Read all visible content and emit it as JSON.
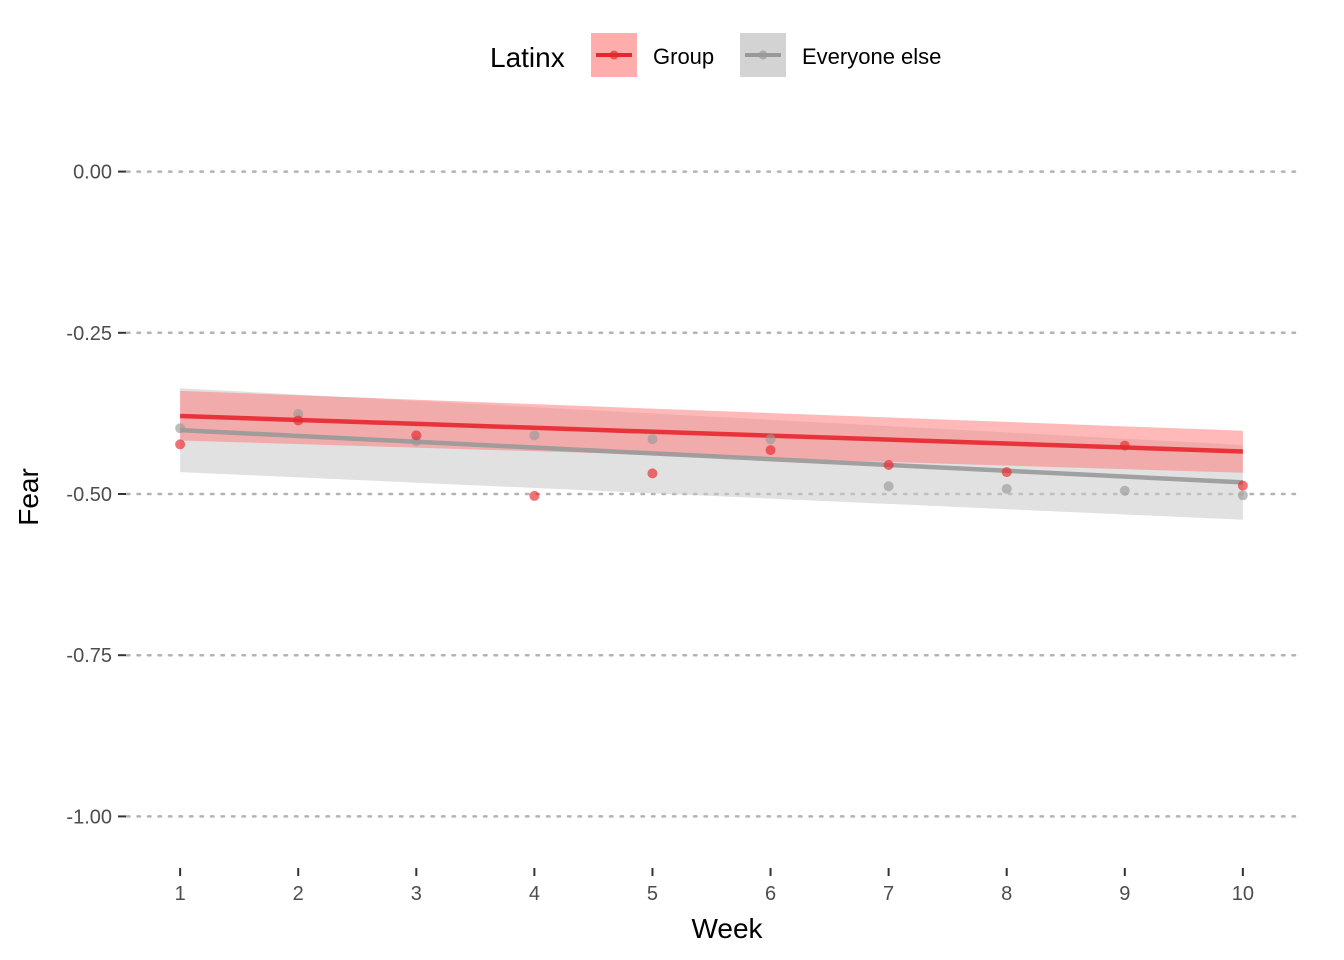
{
  "chart_data": {
    "type": "scatter",
    "title": "",
    "xlabel": "Week",
    "ylabel": "Fear",
    "xlim": [
      0.55,
      10.45
    ],
    "ylim": [
      -1.08,
      0.08
    ],
    "x_ticks": [
      1,
      2,
      3,
      4,
      5,
      6,
      7,
      8,
      9,
      10
    ],
    "y_ticks": [
      0.0,
      -0.25,
      -0.5,
      -0.75,
      -1.0
    ],
    "y_tick_labels": [
      "0.00",
      "-0.25",
      "-0.50",
      "-0.75",
      "-1.00"
    ],
    "grid": "horizontal-dotted",
    "legend": {
      "title": "Latinx",
      "position": "top"
    },
    "series": [
      {
        "name": "Group",
        "color": "#e8262e",
        "ribbon_color": "#ff8080",
        "x": [
          1,
          2,
          3,
          4,
          5,
          6,
          7,
          8,
          9,
          10
        ],
        "points": [
          -0.423,
          -0.386,
          -0.409,
          -0.503,
          -0.468,
          -0.432,
          -0.455,
          -0.466,
          -0.425,
          -0.487
        ],
        "fit_line": {
          "x": [
            1,
            10
          ],
          "y": [
            -0.379,
            -0.434
          ]
        },
        "ribbon_upper": {
          "x": [
            1,
            10
          ],
          "y": [
            -0.34,
            -0.402
          ]
        },
        "ribbon_lower": {
          "x": [
            1,
            10
          ],
          "y": [
            -0.417,
            -0.467
          ]
        }
      },
      {
        "name": "Everyone else",
        "color": "#999999",
        "ribbon_color": "#c8c8c8",
        "x": [
          1,
          2,
          3,
          4,
          5,
          6,
          7,
          8,
          9,
          10
        ],
        "points": [
          -0.398,
          -0.376,
          -0.418,
          -0.409,
          -0.415,
          -0.415,
          -0.488,
          -0.492,
          -0.495,
          -0.502
        ],
        "fit_line": {
          "x": [
            1,
            10
          ],
          "y": [
            -0.401,
            -0.482
          ]
        },
        "ribbon_upper": {
          "x": [
            1,
            10
          ],
          "y": [
            -0.336,
            -0.424
          ]
        },
        "ribbon_lower": {
          "x": [
            1,
            10
          ],
          "y": [
            -0.466,
            -0.54
          ]
        }
      }
    ]
  }
}
